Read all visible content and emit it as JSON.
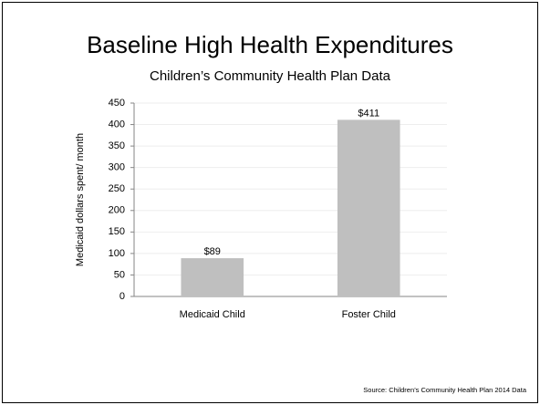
{
  "chart_data": {
    "type": "bar",
    "title": "Baseline High Health Expenditures",
    "subtitle": "Children’s Community Health Plan Data",
    "ylabel": "Medicaid dollars spent/ month",
    "categories": [
      "Medicaid Child",
      "Foster Child"
    ],
    "values": [
      89,
      411
    ],
    "value_labels": [
      "$89",
      "$411"
    ],
    "color": "#bfbfbf",
    "ylim": [
      0,
      450
    ],
    "yticks": [
      0,
      50,
      100,
      150,
      200,
      250,
      300,
      350,
      400,
      450
    ],
    "grid": true,
    "source": "Source:   Children’s Community Health Plan 2014 Data"
  }
}
